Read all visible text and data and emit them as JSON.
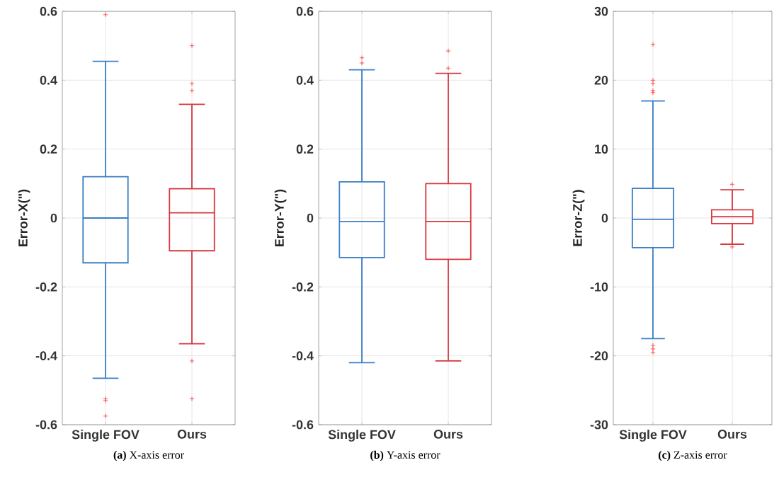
{
  "chart_data": [
    {
      "type": "box",
      "categories": [
        "Single FOV",
        "Ours"
      ],
      "colors": [
        "#3a7fc4",
        "#d9363e"
      ],
      "ylabel": "Error-X(\")",
      "ylim": [
        -0.6,
        0.6
      ],
      "yticks": [
        -0.6,
        -0.4,
        -0.2,
        0,
        0.2,
        0.4,
        0.6
      ],
      "grid": true,
      "marker": "cross",
      "boxes": [
        {
          "low": -0.465,
          "q1": -0.13,
          "median": 0,
          "q3": 0.12,
          "high": 0.455,
          "outliers": [
            0.59,
            -0.525,
            -0.53,
            -0.575
          ]
        },
        {
          "low": -0.365,
          "q1": -0.095,
          "median": 0.015,
          "q3": 0.085,
          "high": 0.33,
          "outliers": [
            0.5,
            0.39,
            0.37,
            -0.415,
            -0.525
          ]
        }
      ],
      "annotations": [
        "**(a)** X-axis error"
      ]
    },
    {
      "type": "box",
      "categories": [
        "Single FOV",
        "Ours"
      ],
      "colors": [
        "#3a7fc4",
        "#d9363e"
      ],
      "ylabel": "Error-Y(\")",
      "ylim": [
        -0.6,
        0.6
      ],
      "yticks": [
        -0.6,
        -0.4,
        -0.2,
        0,
        0.2,
        0.4,
        0.6
      ],
      "grid": true,
      "marker": "cross",
      "boxes": [
        {
          "low": -0.42,
          "q1": -0.115,
          "median": -0.01,
          "q3": 0.105,
          "high": 0.43,
          "outliers": [
            0.465,
            0.45
          ]
        },
        {
          "low": -0.415,
          "q1": -0.12,
          "median": -0.01,
          "q3": 0.1,
          "high": 0.42,
          "outliers": [
            0.485,
            0.435
          ]
        }
      ],
      "annotations": [
        "**(b)** Y-axis error"
      ]
    },
    {
      "type": "box",
      "categories": [
        "Single FOV",
        "Ours"
      ],
      "colors": [
        "#3a7fc4",
        "#d9363e"
      ],
      "ylabel": "Error-Z(\")",
      "ylim": [
        -30,
        30
      ],
      "yticks": [
        -30,
        -20,
        -10,
        0,
        10,
        20,
        30
      ],
      "grid": true,
      "marker": "cross",
      "boxes": [
        {
          "low": -17.5,
          "q1": -4.3,
          "median": -0.2,
          "q3": 4.3,
          "high": 17,
          "outliers": [
            25.2,
            20,
            19.5,
            18.5,
            18.2,
            -18.5,
            -19,
            -19.5
          ]
        },
        {
          "low": -3.8,
          "q1": -0.8,
          "median": 0.2,
          "q3": 1.2,
          "high": 4.1,
          "outliers": [
            4.9,
            -4.2
          ]
        }
      ],
      "annotations": [
        "**(c)** Z-axis error"
      ]
    }
  ]
}
